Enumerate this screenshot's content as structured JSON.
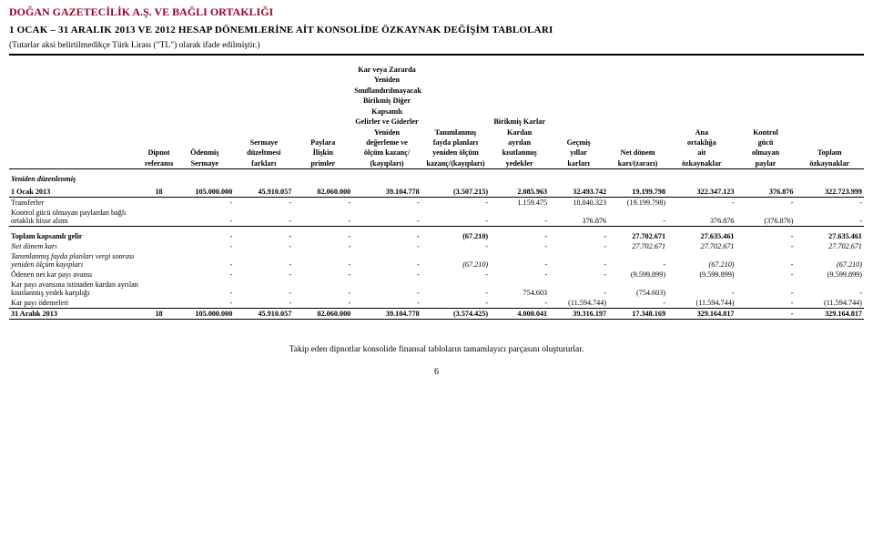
{
  "header": {
    "company": "DOĞAN GAZETECİLİK A.Ş. VE BAĞLI ORTAKLIĞI",
    "report_line": "1 OCAK – 31 ARALIK 2013 VE 2012 HESAP DÖNEMLERİNE AİT KONSOLİDE ÖZKAYNAK DEĞİŞİM TABLOLARI",
    "currency_note": "(Tutarlar aksi belirtilmedikçe Türk Lirası (\"TL\") olarak ifade edilmiştir.)"
  },
  "columns": [
    {
      "h": [
        "",
        "",
        "",
        "Dipnot",
        "referansı"
      ]
    },
    {
      "h": [
        "",
        "",
        "",
        "Ödenmiş",
        "Sermaye"
      ]
    },
    {
      "h": [
        "",
        "",
        "Sermaye",
        "düzeltmesi",
        "farkları"
      ]
    },
    {
      "h": [
        "",
        "",
        "Paylara",
        "İlişkin",
        "primler"
      ]
    },
    {
      "h": [
        "Kar veya Zararda",
        "Yeniden",
        "Sınıflandırılmayacak",
        "Birikmiş Diğer",
        "Kapsamlı",
        "Gelirler ve Giderler",
        "Yeniden",
        "değerleme ve",
        "ölçüm kazanç/",
        "(kayıpları)"
      ]
    },
    {
      "h": [
        "",
        "",
        "Tanımlanmış",
        "fayda planları",
        "yeniden ölçüm",
        "kazanç/(kayıpları)"
      ]
    },
    {
      "h": [
        "Birikmiş Karlar",
        "",
        "Kardan",
        "ayrılan",
        "kısıtlanmış",
        "yedekler"
      ]
    },
    {
      "h": [
        "",
        "",
        "",
        "Geçmiş",
        "yıllar",
        "karları"
      ]
    },
    {
      "h": [
        "",
        "",
        "",
        "",
        "Net dönem",
        "karı/(zararı)"
      ]
    },
    {
      "h": [
        "",
        "",
        "Ana",
        "ortaklığa",
        "ait",
        "özkaynaklar"
      ]
    },
    {
      "h": [
        "",
        "",
        "Kontrol",
        "gücü",
        "olmayan",
        "paylar"
      ]
    },
    {
      "h": [
        "",
        "",
        "",
        "",
        "Toplam",
        "özkaynaklar"
      ]
    }
  ],
  "th": {
    "r1c5": "Kar veya Zararda",
    "r2c5": "Yeniden",
    "r3c5": "Sınıflandırılmayacak",
    "r4c5": "Birikmiş Diğer",
    "r5c5": "Kapsamlı",
    "r6c5": "Gelirler ve Giderler",
    "r6c7": "Birikmiş Karlar",
    "r7c5": "Yeniden",
    "r7c6": "Tanımlanmış",
    "r7c7": "Kardan",
    "r7c10": "Ana",
    "r7c11": "Kontrol",
    "r8c3": "Sermaye",
    "r8c4": "Paylara",
    "r8c5": "değerleme ve",
    "r8c6": "fayda planları",
    "r8c7": "ayrılan",
    "r8c8": "Geçmiş",
    "r8c10": "ortaklığa",
    "r8c11": "gücü",
    "r9c1": "Dipnot",
    "r9c2": "Ödenmiş",
    "r9c3": "düzeltmesi",
    "r9c4": "İlişkin",
    "r9c5": "ölçüm kazanç/",
    "r9c6": "yeniden ölçüm",
    "r9c7": "kısıtlanmış",
    "r9c8": "yıllar",
    "r9c9": "Net dönem",
    "r9c10": "ait",
    "r9c11": "olmayan",
    "r9c12": "Toplam",
    "r10c1": "referansı",
    "r10c2": "Sermaye",
    "r10c3": "farkları",
    "r10c4": "primler",
    "r10c5": "(kayıpları)",
    "r10c6": "kazanç/(kayıpları)",
    "r10c7": "yedekler",
    "r10c8": "karları",
    "r10c9": "karı/(zararı)",
    "r10c10": "özkaynaklar",
    "r10c11": "paylar",
    "r10c12": "özkaynaklar"
  },
  "section_label": "Yeniden düzenlenmiş",
  "rows": [
    {
      "label": "1 Ocak 2013",
      "ref": "18",
      "v": [
        "105.000.000",
        "45.910.057",
        "82.060.000",
        "39.104.778",
        "(3.507.215)",
        "2.085.963",
        "32.493.742",
        "19.199.798",
        "322.347.123",
        "376.876",
        "322.723.999"
      ],
      "bold": true,
      "ul": true
    },
    {
      "label": "Transferler",
      "ref": "",
      "v": [
        "-",
        "-",
        "-",
        "-",
        "-",
        "1.159.475",
        "18.040.323",
        "(19.199.798)",
        "-",
        "-",
        "-"
      ]
    },
    {
      "label": "Kontrol gücü olmayan paylardan bağlı ortaklık hisse alımı",
      "ref": "",
      "v": [
        "-",
        "-",
        "-",
        "-",
        "-",
        "-",
        "376.876",
        "-",
        "376.876",
        "(376.876)",
        "-"
      ]
    },
    {
      "label": "Toplam kapsamlı gelir",
      "ref": "",
      "v": [
        "-",
        "-",
        "-",
        "-",
        "(67.210)",
        "-",
        "-",
        "27.702.671",
        "27.635.461",
        "-",
        "27.635.461"
      ],
      "bold": true,
      "ul_top": true
    },
    {
      "label": "Net dönem karı",
      "ref": "",
      "v": [
        "-",
        "-",
        "-",
        "-",
        "-",
        "-",
        "-",
        "27.702.671",
        "27.702.671",
        "-",
        "27.702.671"
      ],
      "italic": true
    },
    {
      "label": "Tanımlanmış fayda planları vergi sonrası yeniden ölçüm kayıpları",
      "ref": "",
      "v": [
        "-",
        "-",
        "-",
        "-",
        "(67.210)",
        "-",
        "-",
        "-",
        "(67.210)",
        "-",
        "(67.210)"
      ],
      "italic": true
    },
    {
      "label": "Ödenen net kar payı avansı",
      "ref": "",
      "v": [
        "-",
        "-",
        "-",
        "-",
        "-",
        "-",
        "-",
        "(9.599.899)",
        "(9.599.899)",
        "-",
        "(9.599.899)"
      ]
    },
    {
      "label": "Kar payı avansına istinaden kardan ayrılan kısıtlanmış yedek karşılığı",
      "ref": "",
      "v": [
        "-",
        "-",
        "-",
        "-",
        "-",
        "754.603",
        "-",
        "(754.603)",
        "-",
        "-",
        "-"
      ]
    },
    {
      "label": "Kar payı ödemeleri",
      "ref": "",
      "v": [
        "-",
        "-",
        "-",
        "-",
        "-",
        "-",
        "(11.594.744)",
        "-",
        "(11.594.744)",
        "-",
        "(11.594.744)"
      ],
      "ul": true
    },
    {
      "label": "31 Aralık 2013",
      "ref": "18",
      "v": [
        "105.000.000",
        "45.910.057",
        "82.060.000",
        "39.104.778",
        "(3.574.425)",
        "4.000.041",
        "39.316.197",
        "17.348.169",
        "329.164.817",
        "-",
        "329.164.817"
      ],
      "bold": true,
      "ul": true
    }
  ],
  "footer": "Takip eden dipnotlar konsolide finansal tabloların tamamlayıcı parçasını oluştururlar.",
  "page_number": "6"
}
